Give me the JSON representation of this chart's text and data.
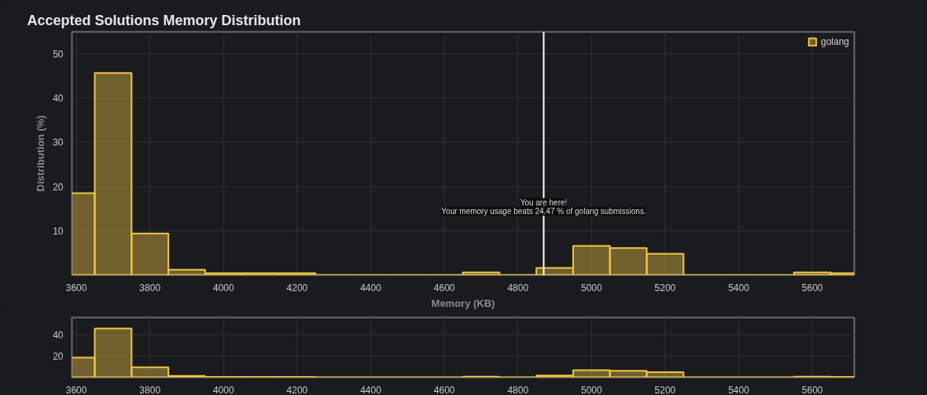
{
  "chart_data": [
    {
      "type": "histogram",
      "title": "Accepted Solutions Memory Distribution",
      "xlabel": "Memory (KB)",
      "ylabel": "Distribution (%)",
      "bins": [
        3550,
        3650,
        3750,
        3850,
        3950,
        4050,
        4150,
        4250,
        4350,
        4450,
        4550,
        4650,
        4750,
        4850,
        4950,
        5050,
        5150,
        5250,
        5350,
        5450,
        5550,
        5650,
        5750
      ],
      "series": [
        {
          "name": "golang",
          "color": "#f2c744",
          "values": [
            18.5,
            45.7,
            9.4,
            1.2,
            0.4,
            0.4,
            0.4,
            0,
            0,
            0,
            0,
            0.6,
            0,
            1.6,
            6.6,
            6.1,
            4.8,
            0,
            0,
            0,
            0.6,
            0.4
          ]
        }
      ],
      "xlim": [
        3588,
        5714
      ],
      "ylim": [
        0,
        55
      ],
      "xticks": [
        3600,
        3800,
        4000,
        4200,
        4400,
        4600,
        4800,
        5000,
        5200,
        5400,
        5600
      ],
      "yticks": [
        10,
        20,
        30,
        40,
        50
      ],
      "ref_lines": [
        {
          "axis": "x",
          "value": 4870,
          "color": "#ffffff"
        }
      ],
      "annotations": [
        {
          "text": "You are here!",
          "x": 4870,
          "y": 16.4
        },
        {
          "text": "Your memory usage beats 24.47 % of golang submissions.",
          "x": 4870,
          "y": 14.4
        }
      ],
      "grid": true,
      "legend": "top right"
    },
    {
      "type": "histogram",
      "bins": [
        3550,
        3650,
        3750,
        3850,
        3950,
        4050,
        4150,
        4250,
        4350,
        4450,
        4550,
        4650,
        4750,
        4850,
        4950,
        5050,
        5150,
        5250,
        5350,
        5450,
        5550,
        5650,
        5750
      ],
      "series": [
        {
          "color": "#f2c744",
          "values": [
            18.5,
            45.7,
            9.4,
            1.2,
            0.4,
            0.4,
            0.4,
            0,
            0,
            0,
            0,
            0.6,
            0,
            1.6,
            6.6,
            6.1,
            4.8,
            0,
            0,
            0,
            0.6,
            0.4
          ]
        }
      ],
      "xlim": [
        3588,
        5714
      ],
      "ylim": [
        0,
        56
      ],
      "xticks": [
        3600,
        3800,
        4000,
        4200,
        4400,
        4600,
        4800,
        5000,
        5200,
        5400,
        5600
      ],
      "yticks": [
        20,
        40
      ],
      "grid": true
    }
  ]
}
